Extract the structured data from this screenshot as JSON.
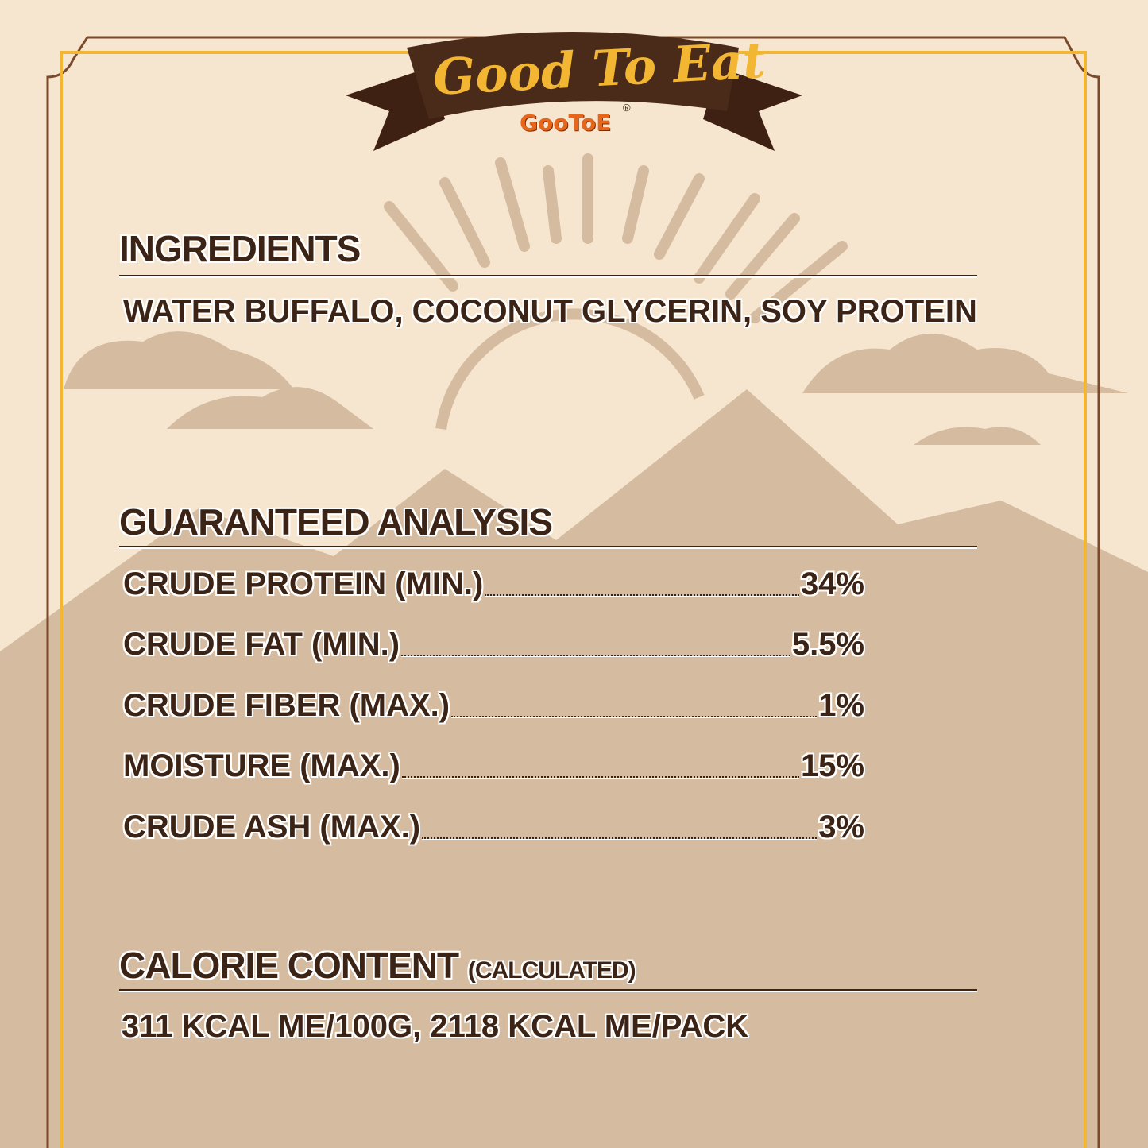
{
  "brand": {
    "tagline": "Good To Eat",
    "logo": "GooToE",
    "registered": "®"
  },
  "colors": {
    "background": "#f6e6cf",
    "silhouette": "#d5bb9f",
    "text": "#3b2416",
    "banner": "#4a2a18",
    "gold": "#f2b632",
    "logo": "#e8661a"
  },
  "ingredients": {
    "title": "INGREDIENTS",
    "text": "WATER BUFFALO, COCONUT GLYCERIN, SOY PROTEIN"
  },
  "analysis": {
    "title": "GUARANTEED ANALYSIS",
    "rows": [
      {
        "label": "CRUDE PROTEIN (MIN.)",
        "value": "34%"
      },
      {
        "label": "CRUDE FAT (MIN.)",
        "value": "5.5%"
      },
      {
        "label": "CRUDE FIBER (MAX.)",
        "value": "1%"
      },
      {
        "label": "MOISTURE (MAX.)",
        "value": "15%"
      },
      {
        "label": "CRUDE ASH (MAX.)",
        "value": "3%"
      }
    ]
  },
  "calorie": {
    "title": "CALORIE CONTENT",
    "note": "(CALCULATED)",
    "text": "311 KCAL ME/100G, 2118 KCAL ME/PACK"
  }
}
